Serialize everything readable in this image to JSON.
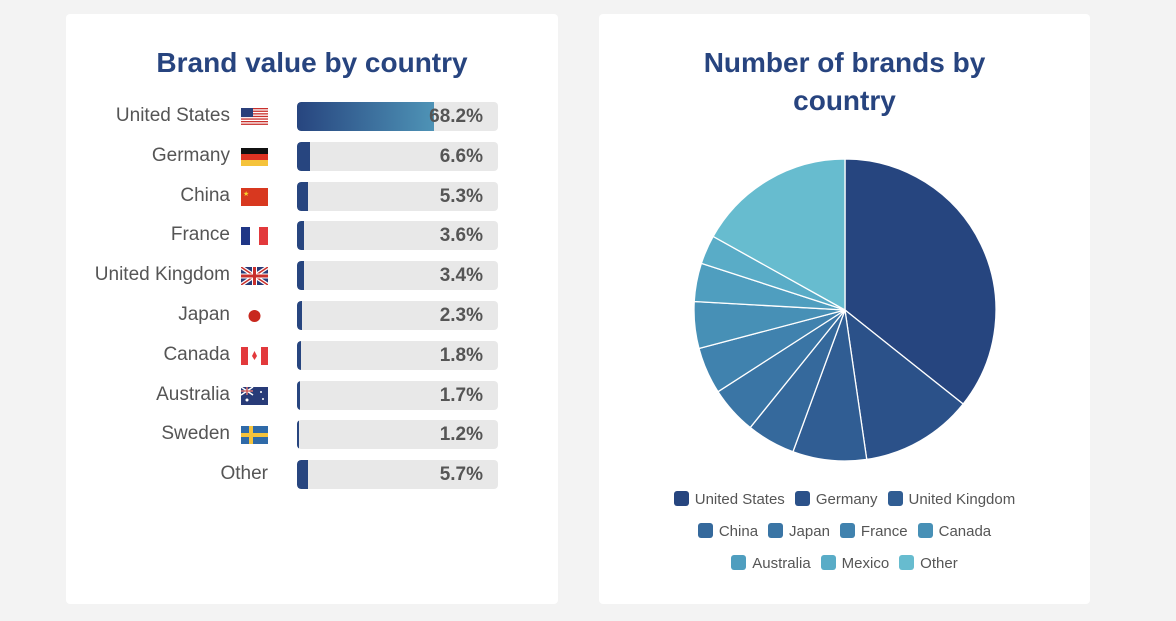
{
  "chart_data": [
    {
      "type": "bar",
      "title": "Brand value by country",
      "orientation": "horizontal",
      "xlim": [
        0,
        100
      ],
      "unit": "%",
      "categories": [
        "United States",
        "Germany",
        "China",
        "France",
        "United Kingdom",
        "Japan",
        "Canada",
        "Australia",
        "Sweden",
        "Other"
      ],
      "flags": [
        "us-flag-icon",
        "germany-flag-icon",
        "china-flag-icon",
        "france-flag-icon",
        "uk-flag-icon",
        "japan-flag-icon",
        "canada-flag-icon",
        "australia-flag-icon",
        "sweden-flag-icon",
        null
      ],
      "values": [
        68.2,
        6.6,
        5.3,
        3.6,
        3.4,
        2.3,
        1.8,
        1.7,
        1.2,
        5.7
      ],
      "labels": [
        "68.2%",
        "6.6%",
        "5.3%",
        "3.6%",
        "3.4%",
        "2.3%",
        "1.8%",
        "1.7%",
        "1.2%",
        "5.7%"
      ],
      "bar_color": "#27457f",
      "track_color": "#e8e8e8"
    },
    {
      "type": "pie",
      "title": "Number of brands by country",
      "legend": "bottom",
      "categories": [
        "United States",
        "Germany",
        "United Kingdom",
        "China",
        "Japan",
        "France",
        "Canada",
        "Australia",
        "Mexico",
        "Other"
      ],
      "values": [
        35.7,
        12.0,
        7.9,
        5.2,
        5.1,
        5.0,
        5.0,
        4.1,
        3.1,
        16.9
      ],
      "colors": [
        "#26457f",
        "#2b5189",
        "#305d93",
        "#35699c",
        "#3a75a5",
        "#4082ae",
        "#4790b6",
        "#4f9ebf",
        "#59acc7",
        "#67bccf"
      ]
    }
  ]
}
